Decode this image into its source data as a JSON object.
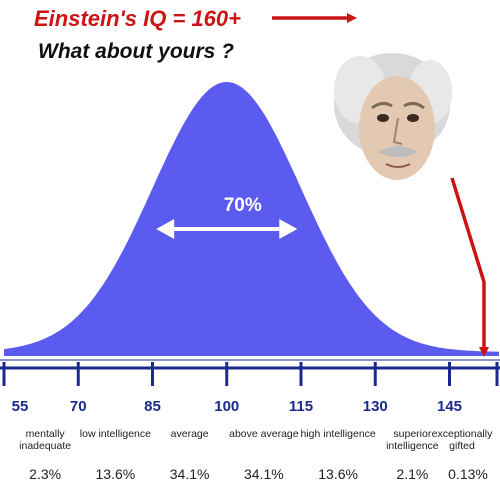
{
  "header": {
    "title": "Einstein's IQ = 160+",
    "subtitle": "What about yours ?"
  },
  "colors": {
    "curve_fill": "#5b5bf0",
    "title_red": "#cc1414",
    "arrow_red": "#cc1414",
    "axis_blue": "#1a2a8c"
  },
  "portrait": {
    "icon": "einstein-portrait-icon"
  },
  "chart_data": {
    "type": "area",
    "title": "Einstein's IQ = 160+",
    "subtitle": "What about yours ?",
    "distribution": "normal",
    "mean": 100,
    "std_dev": 15,
    "xlim": [
      55,
      155
    ],
    "x_ticks": [
      "55",
      "70",
      "85",
      "100",
      "115",
      "130",
      "145"
    ],
    "center_annotation": "70%",
    "bands": [
      {
        "label": "mentally inadequate",
        "range": [
          55,
          70
        ],
        "percent": "2.3%"
      },
      {
        "label": "low intelligence",
        "range": [
          70,
          85
        ],
        "percent": "13.6%"
      },
      {
        "label": "average",
        "range": [
          85,
          100
        ],
        "percent": "34.1%"
      },
      {
        "label": "above average",
        "range": [
          100,
          115
        ],
        "percent": "34.1%"
      },
      {
        "label": "high intelligence",
        "range": [
          115,
          130
        ],
        "percent": "13.6%"
      },
      {
        "label": "superior intelligence",
        "range": [
          130,
          145
        ],
        "percent": "2.1%"
      },
      {
        "label": "exceptionally gifted",
        "range": [
          145,
          155
        ],
        "percent": "0.13%"
      }
    ],
    "marker_value": 160
  }
}
